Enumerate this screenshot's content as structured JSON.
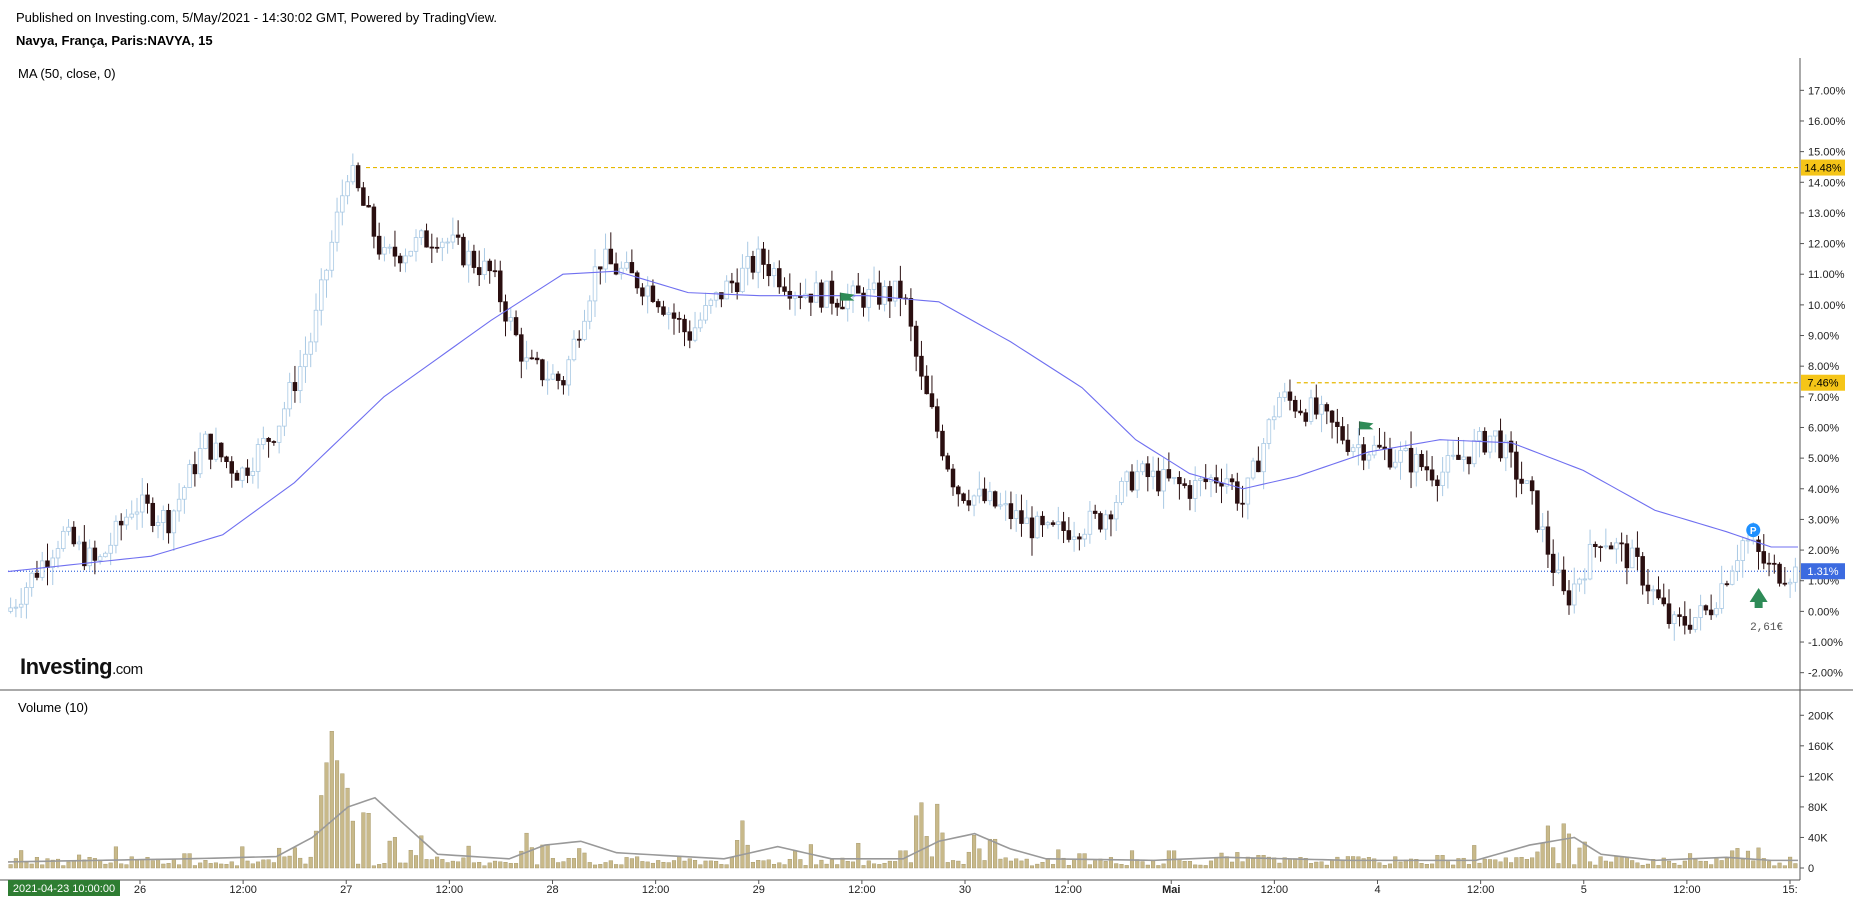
{
  "header": {
    "published": "Published on Investing.com, 5/May/2021 - 14:30:02 GMT, Powered by TradingView.",
    "symbol": "Navya, França, Paris:NAVYA, 15"
  },
  "logo": {
    "main": "Investing",
    "suffix": ".com"
  },
  "colors": {
    "up_wick": "#a9c9e4",
    "down_body": "#2a0f10",
    "ma_line": "#6f6ff0",
    "level_line": "#e6b800",
    "current_line": "#3c6be0",
    "volume_bar": "#c8b98a",
    "volume_ma": "#999999",
    "flag": "#2e8b57",
    "start_badge": "#2e7d32"
  },
  "chart_data": [
    {
      "type": "candlestick",
      "title": "Navya, França, Paris:NAVYA, 15",
      "indicator": "MA (50, close, 0)",
      "y_unit": "%",
      "ylim": [
        -2.5,
        17.5
      ],
      "y_ticks": [
        "17.00%",
        "16.00%",
        "15.00%",
        "14.00%",
        "13.00%",
        "12.00%",
        "11.00%",
        "10.00%",
        "9.00%",
        "8.00%",
        "7.00%",
        "6.00%",
        "5.00%",
        "4.00%",
        "3.00%",
        "2.00%",
        "1.00%",
        "0.00%",
        "-1.00%",
        "-2.00%"
      ],
      "x_tick_labels": [
        "26",
        "12:00",
        "27",
        "12:00",
        "28",
        "12:00",
        "29",
        "12:00",
        "30",
        "12:00",
        "Mai",
        "12:00",
        "4",
        "12:00",
        "5",
        "12:00",
        "15:"
      ],
      "start_label": "2021-04-23 10:00:00",
      "horizontal_levels": [
        {
          "value": 14.48,
          "label": "14.48%",
          "style": "dashed"
        },
        {
          "value": 7.46,
          "label": "7.46%",
          "style": "dashed"
        },
        {
          "value": 1.31,
          "label": "1.31%",
          "style": "dotted"
        }
      ],
      "annotation": {
        "text": "2,61€",
        "marker": "P"
      },
      "price_path": [
        [
          0,
          0.0
        ],
        [
          0.03,
          2.5
        ],
        [
          0.05,
          1.5
        ],
        [
          0.07,
          3.5
        ],
        [
          0.09,
          3.0
        ],
        [
          0.11,
          5.5
        ],
        [
          0.13,
          4.5
        ],
        [
          0.15,
          6.0
        ],
        [
          0.17,
          9.0
        ],
        [
          0.19,
          14.5
        ],
        [
          0.21,
          11.5
        ],
        [
          0.24,
          12.3
        ],
        [
          0.27,
          11.0
        ],
        [
          0.29,
          8.0
        ],
        [
          0.31,
          7.5
        ],
        [
          0.33,
          11.5
        ],
        [
          0.36,
          10.5
        ],
        [
          0.38,
          9.0
        ],
        [
          0.4,
          10.5
        ],
        [
          0.42,
          11.5
        ],
        [
          0.44,
          10.5
        ],
        [
          0.47,
          10.2
        ],
        [
          0.5,
          10.4
        ],
        [
          0.51,
          7.5
        ],
        [
          0.53,
          4.0
        ],
        [
          0.55,
          3.5
        ],
        [
          0.58,
          2.5
        ],
        [
          0.61,
          3.0
        ],
        [
          0.63,
          4.5
        ],
        [
          0.66,
          4.0
        ],
        [
          0.68,
          4.5
        ],
        [
          0.69,
          3.5
        ],
        [
          0.71,
          7.0
        ],
        [
          0.73,
          6.5
        ],
        [
          0.75,
          5.5
        ],
        [
          0.78,
          5.0
        ],
        [
          0.8,
          4.5
        ],
        [
          0.83,
          5.8
        ],
        [
          0.85,
          3.8
        ],
        [
          0.87,
          0.3
        ],
        [
          0.89,
          2.5
        ],
        [
          0.91,
          1.5
        ],
        [
          0.93,
          -0.5
        ],
        [
          0.95,
          0.0
        ],
        [
          0.97,
          2.4
        ],
        [
          0.985,
          1.3
        ]
      ],
      "ma_path": [
        [
          0,
          1.3
        ],
        [
          0.08,
          1.8
        ],
        [
          0.12,
          2.5
        ],
        [
          0.16,
          4.2
        ],
        [
          0.21,
          7.0
        ],
        [
          0.27,
          9.5
        ],
        [
          0.31,
          11.0
        ],
        [
          0.34,
          11.1
        ],
        [
          0.38,
          10.4
        ],
        [
          0.42,
          10.3
        ],
        [
          0.48,
          10.3
        ],
        [
          0.52,
          10.1
        ],
        [
          0.56,
          8.8
        ],
        [
          0.6,
          7.3
        ],
        [
          0.63,
          5.6
        ],
        [
          0.66,
          4.5
        ],
        [
          0.69,
          4.0
        ],
        [
          0.72,
          4.4
        ],
        [
          0.76,
          5.2
        ],
        [
          0.8,
          5.6
        ],
        [
          0.84,
          5.5
        ],
        [
          0.88,
          4.6
        ],
        [
          0.92,
          3.3
        ],
        [
          0.96,
          2.6
        ],
        [
          0.985,
          2.1
        ]
      ]
    },
    {
      "type": "bar",
      "title": "Volume (10)",
      "ylim": [
        0,
        220000
      ],
      "y_ticks": [
        "200K",
        "160K",
        "120K",
        "80K",
        "40K",
        "0"
      ],
      "values": [],
      "spikes": [
        [
          0.04,
          18000
        ],
        [
          0.06,
          12000
        ],
        [
          0.1,
          25000
        ],
        [
          0.16,
          28000
        ],
        [
          0.175,
          95000
        ],
        [
          0.18,
          210000
        ],
        [
          0.185,
          175000
        ],
        [
          0.19,
          110000
        ],
        [
          0.2,
          95000
        ],
        [
          0.215,
          50000
        ],
        [
          0.23,
          25000
        ],
        [
          0.29,
          48000
        ],
        [
          0.3,
          40000
        ],
        [
          0.32,
          30000
        ],
        [
          0.41,
          65000
        ],
        [
          0.44,
          20000
        ],
        [
          0.5,
          30000
        ],
        [
          0.51,
          90000
        ],
        [
          0.52,
          70000
        ],
        [
          0.54,
          45000
        ],
        [
          0.55,
          50000
        ],
        [
          0.6,
          25000
        ],
        [
          0.65,
          30000
        ],
        [
          0.7,
          22000
        ],
        [
          0.75,
          20000
        ],
        [
          0.8,
          22000
        ],
        [
          0.86,
          58000
        ],
        [
          0.87,
          68000
        ],
        [
          0.88,
          40000
        ],
        [
          0.9,
          20000
        ],
        [
          0.94,
          20000
        ],
        [
          0.965,
          32000
        ]
      ],
      "ma_path": [
        [
          0,
          8000
        ],
        [
          0.1,
          12000
        ],
        [
          0.15,
          15000
        ],
        [
          0.17,
          40000
        ],
        [
          0.19,
          80000
        ],
        [
          0.205,
          92000
        ],
        [
          0.22,
          60000
        ],
        [
          0.24,
          18000
        ],
        [
          0.28,
          12000
        ],
        [
          0.3,
          30000
        ],
        [
          0.32,
          35000
        ],
        [
          0.34,
          20000
        ],
        [
          0.4,
          12000
        ],
        [
          0.43,
          28000
        ],
        [
          0.46,
          12000
        ],
        [
          0.5,
          12000
        ],
        [
          0.52,
          35000
        ],
        [
          0.54,
          45000
        ],
        [
          0.56,
          25000
        ],
        [
          0.58,
          12000
        ],
        [
          0.64,
          10000
        ],
        [
          0.68,
          14000
        ],
        [
          0.75,
          10000
        ],
        [
          0.82,
          10000
        ],
        [
          0.85,
          30000
        ],
        [
          0.875,
          40000
        ],
        [
          0.89,
          18000
        ],
        [
          0.92,
          10000
        ],
        [
          0.96,
          14000
        ],
        [
          0.985,
          10000
        ]
      ]
    }
  ]
}
